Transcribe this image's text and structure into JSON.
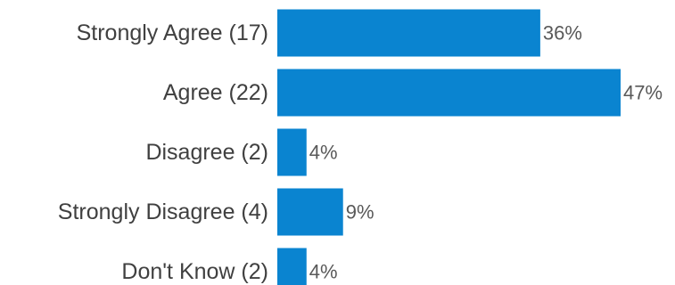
{
  "chart_data": {
    "type": "bar",
    "orientation": "horizontal",
    "categories": [
      "Strongly Agree (17)",
      "Agree (22)",
      "Disagree (2)",
      "Strongly Disagree (4)",
      "Don't Know (2)"
    ],
    "values": [
      36,
      47,
      4,
      9,
      4
    ],
    "value_labels": [
      "36%",
      "47%",
      "4%",
      "9%",
      "4%"
    ],
    "unit": "%",
    "title": "",
    "xlabel": "",
    "ylabel": "",
    "xlim": [
      0,
      47
    ],
    "grid": false,
    "legend": "none",
    "colors": {
      "bar": "#0A84D0",
      "category_text": "#404040",
      "value_text": "#595959",
      "background": "#FFFFFF"
    }
  }
}
